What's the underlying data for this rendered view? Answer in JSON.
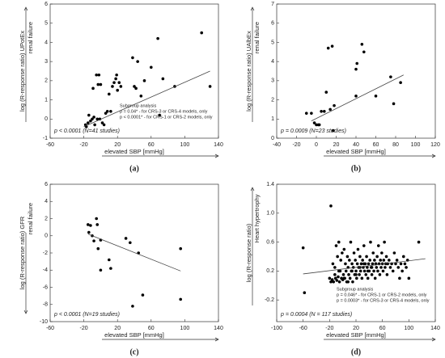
{
  "chart_data": [
    {
      "type": "scatter",
      "label": "(a)",
      "y_label": "log (R-response ratio) UPotEx",
      "y_label2": "renal failure",
      "x_label": "elevated SBP [mmHg]",
      "annotation": "p < 0.0001 (N=41 studies)",
      "subgroup": [
        "Subgroup analysis",
        "p = 0.04* - for CRS-3 or CRS-4 models, only",
        "p < 0.0001* - for CRS-1 or CRS-2 models, only"
      ],
      "color": "#000000",
      "x": [
        -18,
        -17,
        -15,
        -14,
        -12,
        -10,
        -9,
        -8,
        -7,
        -5,
        -4,
        -3,
        -2,
        -1,
        0,
        2,
        4,
        6,
        8,
        10,
        12,
        14,
        16,
        18,
        19,
        20,
        22,
        24,
        38,
        40,
        42,
        44,
        48,
        52,
        60,
        68,
        70,
        74,
        88,
        120,
        130
      ],
      "values": [
        -0.3,
        -0.4,
        -0.2,
        0.2,
        -0.1,
        0,
        1.6,
        0.1,
        -0.3,
        2.3,
        0,
        1.8,
        2.3,
        0,
        1.8,
        -0.2,
        -0.3,
        0.3,
        0.4,
        1.3,
        0.4,
        1.7,
        1.9,
        2.1,
        2.3,
        1.5,
        1.9,
        1.7,
        3.2,
        1.7,
        1.6,
        3,
        1.2,
        2,
        2.7,
        4.2,
        0.2,
        2.1,
        1.7,
        4.5,
        1.7
      ],
      "trend": {
        "x": [
          -20,
          130
        ],
        "values": [
          -0.4,
          2.5
        ]
      },
      "xlim": [
        -60,
        140
      ],
      "ylim": [
        -1,
        6
      ],
      "xticks": [
        -60,
        -20,
        20,
        60,
        100,
        140
      ],
      "yticks": [
        -1,
        0,
        1,
        2,
        3,
        4,
        5,
        6
      ]
    },
    {
      "type": "scatter",
      "label": "(b)",
      "y_label": "log (R-response ratio) UAlbEx",
      "y_label2": "renal failure",
      "x_label": "elevated SBP [mmHg]",
      "annotation": "p = 0.0009 (N=23 studies)",
      "color": "#000000",
      "x": [
        -10,
        -5,
        -2,
        0,
        2,
        3,
        5,
        8,
        10,
        12,
        14,
        16,
        17,
        18,
        40,
        40,
        41,
        46,
        48,
        60,
        75,
        78,
        85
      ],
      "values": [
        1.3,
        1.3,
        0.8,
        0.7,
        0.7,
        0.7,
        1.4,
        1.4,
        2.4,
        4.7,
        1.5,
        4.8,
        0.4,
        1.7,
        3.6,
        2.2,
        3.9,
        4.9,
        4.5,
        2.2,
        3.2,
        1.8,
        2.9
      ],
      "trend": {
        "x": [
          -5,
          88
        ],
        "values": [
          0.9,
          3.3
        ]
      },
      "xlim": [
        -40,
        120
      ],
      "ylim": [
        0,
        7
      ],
      "xticks": [
        -40,
        -20,
        0,
        20,
        40,
        60,
        80,
        100,
        120
      ],
      "yticks": [
        0,
        1,
        2,
        3,
        4,
        5,
        6,
        7
      ]
    },
    {
      "type": "scatter",
      "label": "(c)",
      "y_label": "log (R-response ratio) GFR",
      "y_label2": "renal failure",
      "x_label": "elevated SBP [mmHg]",
      "annotation": "p < 0.0001 (N=19 studies)",
      "color": "#000000",
      "x": [
        -15,
        -12,
        -14,
        -10,
        -8,
        -5,
        -4,
        -3,
        0,
        0,
        10,
        12,
        30,
        35,
        38,
        45,
        50,
        95,
        95
      ],
      "values": [
        1.3,
        1.2,
        0.4,
        0,
        -0.6,
        2,
        1.3,
        -1.5,
        -4,
        -0.5,
        -2.8,
        -3.8,
        -0.3,
        -0.8,
        -8.2,
        -2,
        -6.9,
        -1.5,
        -7.4
      ],
      "trend": {
        "x": [
          -15,
          95
        ],
        "values": [
          0.2,
          -4.1
        ]
      },
      "xlim": [
        -60,
        140
      ],
      "ylim": [
        -10,
        6
      ],
      "xticks": [
        -60,
        -20,
        20,
        60,
        100,
        140
      ],
      "yticks": [
        -10,
        -8,
        -6,
        -4,
        -2,
        0,
        2,
        4,
        6
      ]
    },
    {
      "type": "scatter",
      "label": "(d)",
      "y_label": "log (R-response ratio)",
      "y_label2": "Heart hypertrophy",
      "x_label": "elevated SBP [mmHg]",
      "annotation": "p = 0.0004 (N = 117 studies)",
      "subgroup": [
        "Subgroup analysis",
        "p = 0.046* - for CRS-1 or CRS-2 models, only",
        "p = 0.0003* - for CRS-3 or CRS-4 models, only"
      ],
      "color": "#000000",
      "x": [
        -60,
        -58,
        -20,
        -18,
        -16,
        -15,
        -14,
        -12,
        -11,
        -10,
        -9,
        -8,
        -7,
        -6,
        -5,
        -4,
        -3,
        -2,
        -1,
        0,
        1,
        2,
        3,
        4,
        5,
        6,
        7,
        8,
        9,
        10,
        11,
        12,
        13,
        14,
        15,
        16,
        17,
        18,
        19,
        20,
        21,
        22,
        23,
        24,
        25,
        26,
        27,
        28,
        29,
        30,
        31,
        32,
        33,
        34,
        35,
        36,
        37,
        38,
        39,
        40,
        41,
        42,
        43,
        44,
        45,
        46,
        47,
        48,
        49,
        50,
        51,
        52,
        53,
        54,
        55,
        56,
        57,
        58,
        59,
        60,
        61,
        62,
        63,
        64,
        65,
        66,
        67,
        68,
        70,
        72,
        74,
        76,
        78,
        80,
        82,
        84,
        86,
        88,
        90,
        92,
        94,
        96,
        98,
        100,
        -18,
        -12,
        -6,
        2,
        8,
        14,
        20,
        26,
        32,
        38,
        44,
        50,
        115
      ],
      "values": [
        0.52,
        -0.1,
        0.1,
        1.1,
        0.08,
        0.3,
        0.05,
        0.25,
        0.1,
        0.55,
        0.07,
        0.4,
        0.12,
        0.6,
        0.05,
        0.2,
        0.35,
        0.1,
        0.45,
        0.08,
        0.15,
        0.5,
        0.1,
        0.3,
        0.2,
        0.05,
        0.4,
        0.25,
        0.15,
        0.35,
        0.1,
        0.6,
        0.2,
        0.3,
        0.05,
        0.25,
        0.45,
        0.15,
        0.35,
        0.2,
        0.1,
        0.3,
        0.5,
        0.25,
        0.15,
        0.4,
        0.2,
        0.3,
        0.1,
        0.35,
        0.25,
        0.55,
        0.2,
        0.3,
        0.15,
        0.4,
        0.25,
        0.1,
        0.3,
        0.2,
        0.35,
        0.6,
        0.25,
        0.15,
        0.3,
        0.45,
        0.2,
        0.35,
        0.1,
        0.3,
        0.25,
        0.4,
        0.2,
        0.55,
        0.3,
        0.15,
        0.35,
        0.25,
        0.45,
        0.3,
        0.2,
        0.35,
        0.6,
        0.25,
        0.3,
        0.4,
        0.15,
        0.3,
        0.35,
        0.25,
        0.3,
        0.2,
        0.45,
        0.3,
        0.35,
        0.25,
        0.1,
        0.3,
        0.2,
        0.4,
        0.3,
        0.25,
        0.35,
        0.1,
        0.05,
        0.15,
        0.2,
        0.1,
        0.05,
        0.2,
        0.15,
        0.25,
        0.3,
        0.2,
        0.25,
        0.3,
        0.6
      ],
      "trend": {
        "x": [
          -60,
          125
        ],
        "values": [
          0.16,
          0.37
        ]
      },
      "xlim": [
        -100,
        140
      ],
      "ylim": [
        -0.5,
        1.4
      ],
      "xticks": [
        -100,
        -60,
        -20,
        20,
        60,
        100,
        140
      ],
      "yticks": [
        -0.2,
        0.2,
        0.6,
        {
          "value": 1,
          "label": "1.0"
        },
        1.4
      ]
    }
  ]
}
